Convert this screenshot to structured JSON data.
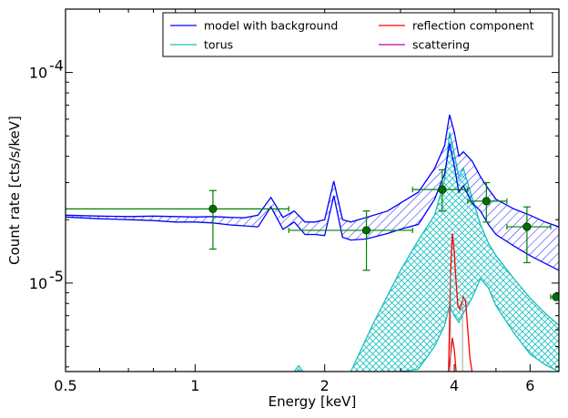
{
  "chart_data": {
    "type": "line",
    "xlabel": "Energy [keV]",
    "ylabel": "Count rate [cts/s/keV]",
    "xscale": "log",
    "yscale": "log",
    "xlim": [
      0.5,
      7.0
    ],
    "ylim": [
      3.8e-06,
      0.0002
    ],
    "x_ticks": [
      {
        "value": 0.5,
        "label": "0.5"
      },
      {
        "value": 1,
        "label": "1"
      },
      {
        "value": 2,
        "label": "2"
      },
      {
        "value": 4,
        "label": "4"
      },
      {
        "value": 6,
        "label": "6"
      }
    ],
    "y_ticks": [
      {
        "value": 0.0001,
        "base": "10",
        "exp": "-4"
      },
      {
        "value": 1e-05,
        "base": "10",
        "exp": "-5"
      }
    ],
    "legend": {
      "placement": "top-right",
      "entries": [
        {
          "label": "model with background",
          "color": "#0000ff"
        },
        {
          "label": "torus",
          "color": "#17bfbf"
        },
        {
          "label": "reflection component",
          "color": "#ff0000"
        },
        {
          "label": "scattering",
          "color": "#bf00bf"
        }
      ]
    },
    "colors": {
      "model": "#0000ff",
      "torus": "#17bfbf",
      "reflection": "#ff0000",
      "scattering": "#bf00bf",
      "data": "#008000",
      "data_marker": "#007000"
    },
    "series": [
      {
        "name": "model with background",
        "band": true,
        "x": [
          0.5,
          0.6,
          0.7,
          0.8,
          0.9,
          1.0,
          1.1,
          1.2,
          1.3,
          1.4,
          1.5,
          1.6,
          1.7,
          1.8,
          1.9,
          2.0,
          2.1,
          2.2,
          2.3,
          2.5,
          2.8,
          3.0,
          3.3,
          3.6,
          3.8,
          3.9,
          4.0,
          4.1,
          4.2,
          4.4,
          4.6,
          4.8,
          5.0,
          5.5,
          6.0,
          6.5,
          7.0
        ],
        "lower": [
          2.06e-05,
          2.02e-05,
          2e-05,
          1.98e-05,
          1.95e-05,
          1.95e-05,
          1.93e-05,
          1.89e-05,
          1.87e-05,
          1.85e-05,
          2.3e-05,
          1.8e-05,
          1.95e-05,
          1.7e-05,
          1.7e-05,
          1.68e-05,
          2.6e-05,
          1.65e-05,
          1.6e-05,
          1.62e-05,
          1.72e-05,
          1.8e-05,
          1.9e-05,
          2.5e-05,
          3.3e-05,
          4.6e-05,
          3.6e-05,
          2.7e-05,
          2.9e-05,
          2.4e-05,
          2.2e-05,
          1.9e-05,
          1.7e-05,
          1.5e-05,
          1.35e-05,
          1.24e-05,
          1.15e-05
        ],
        "upper": [
          2.1e-05,
          2.08e-05,
          2.07e-05,
          2.08e-05,
          2.07e-05,
          2.06e-05,
          2.07e-05,
          2.05e-05,
          2.04e-05,
          2.1e-05,
          2.55e-05,
          2.05e-05,
          2.2e-05,
          1.95e-05,
          1.95e-05,
          2e-05,
          3.05e-05,
          2e-05,
          1.95e-05,
          2.05e-05,
          2.2e-05,
          2.4e-05,
          2.7e-05,
          3.5e-05,
          4.5e-05,
          6.3e-05,
          5.2e-05,
          4e-05,
          4.2e-05,
          3.8e-05,
          3.2e-05,
          2.8e-05,
          2.5e-05,
          2.25e-05,
          2.1e-05,
          1.95e-05,
          1.85e-05
        ]
      },
      {
        "name": "torus",
        "band": true,
        "x": [
          2.3,
          2.6,
          3.0,
          3.3,
          3.6,
          3.8,
          3.9,
          4.0,
          4.1,
          4.2,
          4.4,
          4.6,
          4.8,
          5.0,
          5.5,
          6.0,
          6.5,
          7.0
        ],
        "lower": [
          3.8e-06,
          3.8e-06,
          3.8e-06,
          3.9e-06,
          5e-06,
          6.3e-06,
          7.8e-06,
          7e-06,
          6.5e-06,
          7.2e-06,
          8.5e-06,
          1.05e-05,
          9.5e-06,
          7.8e-06,
          5.8e-06,
          4.6e-06,
          4.1e-06,
          3.8e-06
        ],
        "upper": [
          3.8e-06,
          6.5e-06,
          1.15e-05,
          1.6e-05,
          2.1e-05,
          3.1e-05,
          5.2e-05,
          4.1e-05,
          3.2e-05,
          3.5e-05,
          2.55e-05,
          1.9e-05,
          1.55e-05,
          1.35e-05,
          1.05e-05,
          8.5e-06,
          7.2e-06,
          6.3e-06
        ]
      },
      {
        "name": "reflection component",
        "band": true,
        "x": [
          3.88,
          3.92,
          3.96,
          4.0,
          4.04,
          4.08,
          4.12,
          4.16,
          4.2,
          4.25,
          4.3,
          4.35,
          4.4
        ],
        "lower": [
          3.8e-06,
          4.5e-06,
          5.5e-06,
          4.8e-06,
          3.8e-06,
          3.8e-06,
          3.8e-06,
          3.8e-06,
          3.8e-06,
          3.8e-06,
          3.8e-06,
          3.8e-06,
          3.8e-06
        ],
        "upper": [
          3.8e-06,
          1.1e-05,
          1.72e-05,
          1.4e-05,
          1e-05,
          7.8e-06,
          7.5e-06,
          8e-06,
          8.6e-06,
          8.2e-06,
          6e-06,
          4.4e-06,
          3.8e-06
        ]
      },
      {
        "name": "scattering",
        "band": false,
        "x": [],
        "y": []
      }
    ],
    "extra_feature": {
      "name": "torus line at 1.74 keV",
      "x": [
        1.7,
        1.72,
        1.74,
        1.76,
        1.78
      ],
      "peak_upper": 4.05e-06,
      "peak_lower": 3.9e-06
    },
    "data_points": [
      {
        "x": 1.1,
        "y": 2.25e-05,
        "xerr": [
          0.5,
          1.65
        ],
        "yerr": [
          1.45e-05,
          2.75e-05
        ]
      },
      {
        "x": 2.5,
        "y": 1.78e-05,
        "xerr": [
          1.65,
          3.2
        ],
        "yerr": [
          1.15e-05,
          2.2e-05
        ]
      },
      {
        "x": 3.75,
        "y": 2.78e-05,
        "xerr": [
          3.2,
          4.3
        ],
        "yerr": [
          2.2e-05,
          3.45e-05
        ]
      },
      {
        "x": 4.75,
        "y": 2.45e-05,
        "xerr": [
          4.3,
          5.3
        ],
        "yerr": [
          1.95e-05,
          3e-05
        ]
      },
      {
        "x": 5.9,
        "y": 1.85e-05,
        "xerr": [
          5.3,
          6.7
        ],
        "yerr": [
          1.25e-05,
          2.3e-05
        ]
      },
      {
        "x": 6.9,
        "y": 8.6e-06,
        "xerr": [
          6.7,
          7.2
        ],
        "yerr": [
          8.6e-06,
          8.6e-06
        ]
      }
    ]
  }
}
